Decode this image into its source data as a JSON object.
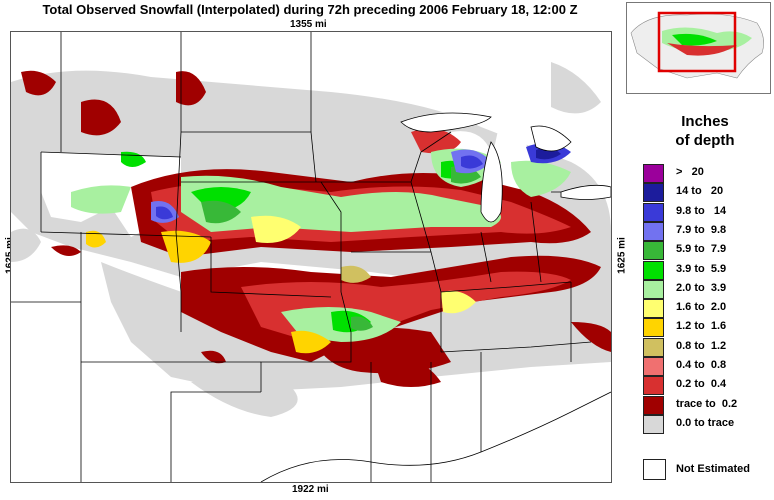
{
  "map": {
    "title": "Total Observed Snowfall (Interpolated) during 72h preceding 2006 February 18, 12:00 Z",
    "scale_top": "1355 mi",
    "scale_bottom": "1922 mi",
    "scale_left": "1625 mi",
    "scale_right": "1625 mi"
  },
  "legend": {
    "title_line1": "Inches",
    "title_line2": "of depth",
    "items": [
      {
        "label": ">   20",
        "color": "#9b009b"
      },
      {
        "label": "14 to   20",
        "color": "#1c1c9c"
      },
      {
        "label": "9.8 to   14",
        "color": "#3a3ad8"
      },
      {
        "label": "7.9 to  9.8",
        "color": "#7272f0"
      },
      {
        "label": "5.9 to  7.9",
        "color": "#38b838"
      },
      {
        "label": "3.9 to  5.9",
        "color": "#00e000"
      },
      {
        "label": "2.0 to  3.9",
        "color": "#a8f0a0"
      },
      {
        "label": "1.6 to  2.0",
        "color": "#ffff70"
      },
      {
        "label": "1.2 to  1.6",
        "color": "#ffd400"
      },
      {
        "label": "0.8 to  1.2",
        "color": "#d0c060"
      },
      {
        "label": "0.4 to  0.8",
        "color": "#f07070"
      },
      {
        "label": "0.2 to  0.4",
        "color": "#d83030"
      },
      {
        "label": "trace to  0.2",
        "color": "#a00000"
      },
      {
        "label": "0.0 to trace",
        "color": "#d8d8d8"
      }
    ],
    "not_estimated_label": "Not Estimated",
    "not_estimated_color": "#ffffff"
  }
}
